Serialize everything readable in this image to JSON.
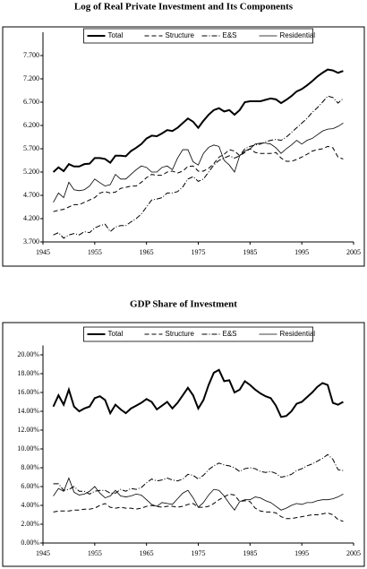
{
  "chart_data": [
    {
      "type": "line",
      "title": "Log of Real Private Investment and Its Components",
      "x": [
        1947,
        1948,
        1949,
        1950,
        1951,
        1952,
        1953,
        1954,
        1955,
        1956,
        1957,
        1958,
        1959,
        1960,
        1961,
        1962,
        1963,
        1964,
        1965,
        1966,
        1967,
        1968,
        1969,
        1970,
        1971,
        1972,
        1973,
        1974,
        1975,
        1976,
        1977,
        1978,
        1979,
        1980,
        1981,
        1982,
        1983,
        1984,
        1985,
        1986,
        1987,
        1988,
        1989,
        1990,
        1991,
        1992,
        1993,
        1994,
        1995,
        1996,
        1997,
        1998,
        1999,
        2000,
        2001,
        2002,
        2003
      ],
      "xlim": [
        1945,
        2005
      ],
      "xticks": [
        1945,
        1955,
        1965,
        1975,
        1985,
        1995,
        2005
      ],
      "ylim": [
        3.7,
        8.2
      ],
      "yticks": [
        {
          "value": 3.7,
          "label": "3.700"
        },
        {
          "value": 4.2,
          "label": "4.200"
        },
        {
          "value": 4.7,
          "label": "4.700"
        },
        {
          "value": 5.2,
          "label": "5.200"
        },
        {
          "value": 5.7,
          "label": "5.700"
        },
        {
          "value": 6.2,
          "label": "6.200"
        },
        {
          "value": 6.7,
          "label": "6.700"
        },
        {
          "value": 7.2,
          "label": "7.200"
        },
        {
          "value": 7.7,
          "label": "7.700"
        }
      ],
      "legend": "top",
      "series": [
        {
          "name": "Total",
          "color": "#000000",
          "style": "bold",
          "values": [
            5.2,
            5.3,
            5.22,
            5.37,
            5.32,
            5.32,
            5.37,
            5.38,
            5.5,
            5.5,
            5.48,
            5.4,
            5.55,
            5.55,
            5.54,
            5.65,
            5.72,
            5.8,
            5.92,
            5.98,
            5.97,
            6.03,
            6.1,
            6.08,
            6.15,
            6.25,
            6.35,
            6.28,
            6.15,
            6.3,
            6.43,
            6.53,
            6.57,
            6.5,
            6.53,
            6.43,
            6.53,
            6.7,
            6.72,
            6.72,
            6.72,
            6.75,
            6.78,
            6.76,
            6.68,
            6.75,
            6.83,
            6.93,
            6.98,
            7.06,
            7.15,
            7.25,
            7.33,
            7.4,
            7.38,
            7.33,
            7.37
          ]
        },
        {
          "name": "Structure",
          "color": "#000000",
          "style": "dashed",
          "values": [
            4.35,
            4.38,
            4.4,
            4.45,
            4.5,
            4.5,
            4.55,
            4.6,
            4.65,
            4.75,
            4.78,
            4.75,
            4.77,
            4.85,
            4.87,
            4.9,
            4.9,
            4.98,
            5.08,
            5.15,
            5.13,
            5.13,
            5.2,
            5.22,
            5.18,
            5.22,
            5.32,
            5.33,
            5.22,
            5.22,
            5.28,
            5.38,
            5.52,
            5.58,
            5.68,
            5.65,
            5.55,
            5.62,
            5.7,
            5.62,
            5.6,
            5.6,
            5.6,
            5.62,
            5.5,
            5.43,
            5.43,
            5.47,
            5.52,
            5.58,
            5.65,
            5.68,
            5.7,
            5.75,
            5.72,
            5.52,
            5.48
          ]
        },
        {
          "name": "E&S",
          "color": "#000000",
          "style": "dashdot",
          "values": [
            3.85,
            3.9,
            3.78,
            3.85,
            3.88,
            3.85,
            3.92,
            3.9,
            4.0,
            4.05,
            4.08,
            3.92,
            4.02,
            4.05,
            4.05,
            4.13,
            4.2,
            4.3,
            4.45,
            4.6,
            4.62,
            4.65,
            4.75,
            4.75,
            4.78,
            4.88,
            5.05,
            5.1,
            5.0,
            5.05,
            5.2,
            5.35,
            5.45,
            5.5,
            5.55,
            5.5,
            5.55,
            5.7,
            5.75,
            5.78,
            5.8,
            5.85,
            5.88,
            5.9,
            5.88,
            5.95,
            6.05,
            6.15,
            6.25,
            6.35,
            6.48,
            6.58,
            6.7,
            6.83,
            6.8,
            6.68,
            6.78
          ]
        },
        {
          "name": "Residential",
          "color": "#000000",
          "style": "solid",
          "values": [
            4.55,
            4.75,
            4.65,
            4.98,
            4.82,
            4.8,
            4.82,
            4.9,
            5.05,
            4.97,
            4.9,
            4.93,
            5.15,
            5.05,
            5.05,
            5.15,
            5.25,
            5.33,
            5.3,
            5.2,
            5.2,
            5.3,
            5.33,
            5.25,
            5.5,
            5.68,
            5.68,
            5.42,
            5.35,
            5.6,
            5.73,
            5.78,
            5.75,
            5.45,
            5.35,
            5.2,
            5.55,
            5.65,
            5.7,
            5.8,
            5.82,
            5.82,
            5.8,
            5.72,
            5.6,
            5.7,
            5.78,
            5.88,
            5.8,
            5.88,
            5.92,
            6.0,
            6.08,
            6.12,
            6.13,
            6.18,
            6.25
          ]
        }
      ]
    },
    {
      "type": "line",
      "title": "GDP Share of Investment",
      "x": [
        1947,
        1948,
        1949,
        1950,
        1951,
        1952,
        1953,
        1954,
        1955,
        1956,
        1957,
        1958,
        1959,
        1960,
        1961,
        1962,
        1963,
        1964,
        1965,
        1966,
        1967,
        1968,
        1969,
        1970,
        1971,
        1972,
        1973,
        1974,
        1975,
        1976,
        1977,
        1978,
        1979,
        1980,
        1981,
        1982,
        1983,
        1984,
        1985,
        1986,
        1987,
        1988,
        1989,
        1990,
        1991,
        1992,
        1993,
        1994,
        1995,
        1996,
        1997,
        1998,
        1999,
        2000,
        2001,
        2002,
        2003
      ],
      "xlim": [
        1945,
        2005
      ],
      "xticks": [
        1945,
        1955,
        1965,
        1975,
        1985,
        1995,
        2005
      ],
      "ylim": [
        0,
        21
      ],
      "yticks": [
        {
          "value": 0,
          "label": "0.00%"
        },
        {
          "value": 2,
          "label": "2.00%"
        },
        {
          "value": 4,
          "label": "4.00%"
        },
        {
          "value": 6,
          "label": "6.00%"
        },
        {
          "value": 8,
          "label": "8.00%"
        },
        {
          "value": 10,
          "label": "10.00%"
        },
        {
          "value": 12,
          "label": "12.00%"
        },
        {
          "value": 14,
          "label": "14.00%"
        },
        {
          "value": 16,
          "label": "16.00%"
        },
        {
          "value": 18,
          "label": "18.00%"
        },
        {
          "value": 20,
          "label": "20.00%"
        }
      ],
      "legend": "top",
      "series": [
        {
          "name": "Total",
          "color": "#000000",
          "style": "bold",
          "values": [
            14.5,
            15.7,
            14.7,
            16.3,
            14.5,
            14.0,
            14.3,
            14.5,
            15.4,
            15.6,
            15.2,
            13.8,
            14.7,
            14.2,
            13.8,
            14.3,
            14.6,
            14.9,
            15.3,
            15.0,
            14.2,
            14.6,
            15.0,
            14.3,
            14.9,
            15.7,
            16.5,
            15.7,
            14.3,
            15.2,
            16.8,
            18.1,
            18.4,
            17.2,
            17.3,
            16.0,
            16.3,
            17.2,
            16.8,
            16.3,
            15.9,
            15.6,
            15.4,
            14.6,
            13.4,
            13.5,
            14.0,
            14.8,
            15.0,
            15.5,
            16.0,
            16.6,
            17.0,
            16.8,
            14.9,
            14.7,
            15.0
          ]
        },
        {
          "name": "Structure",
          "color": "#000000",
          "style": "dashed",
          "values": [
            3.3,
            3.4,
            3.4,
            3.4,
            3.5,
            3.5,
            3.6,
            3.6,
            3.7,
            4.0,
            4.2,
            3.8,
            3.7,
            3.8,
            3.7,
            3.7,
            3.6,
            3.7,
            3.9,
            4.0,
            3.9,
            3.8,
            3.9,
            3.9,
            3.8,
            3.9,
            4.1,
            4.2,
            3.8,
            3.8,
            3.9,
            4.2,
            4.6,
            4.9,
            5.2,
            5.1,
            4.4,
            4.5,
            4.4,
            3.7,
            3.4,
            3.3,
            3.3,
            3.2,
            2.8,
            2.6,
            2.6,
            2.7,
            2.8,
            2.9,
            3.0,
            3.0,
            3.1,
            3.2,
            3.0,
            2.5,
            2.3
          ]
        },
        {
          "name": "E&S",
          "color": "#000000",
          "style": "dashdot",
          "values": [
            6.3,
            6.3,
            5.6,
            5.7,
            6.0,
            5.5,
            5.5,
            5.2,
            5.5,
            5.6,
            5.6,
            5.3,
            5.3,
            5.7,
            5.5,
            5.8,
            5.7,
            5.9,
            6.4,
            6.8,
            6.6,
            6.7,
            6.9,
            6.7,
            6.6,
            6.8,
            7.3,
            7.2,
            6.8,
            7.2,
            7.8,
            8.2,
            8.5,
            8.3,
            8.2,
            8.0,
            7.6,
            7.9,
            8.0,
            7.9,
            7.6,
            7.5,
            7.6,
            7.4,
            7.0,
            7.1,
            7.3,
            7.7,
            7.9,
            8.2,
            8.4,
            8.7,
            9.0,
            9.4,
            8.9,
            7.8,
            7.7
          ]
        },
        {
          "name": "Residential",
          "color": "#000000",
          "style": "solid",
          "values": [
            5.0,
            5.8,
            5.5,
            6.9,
            5.4,
            5.1,
            5.2,
            5.5,
            6.0,
            5.3,
            4.8,
            5.0,
            5.6,
            5.0,
            4.9,
            5.0,
            5.2,
            5.1,
            4.6,
            4.1,
            3.9,
            4.3,
            4.2,
            4.1,
            4.7,
            5.3,
            5.6,
            4.8,
            3.8,
            4.3,
            5.1,
            5.7,
            5.6,
            5.0,
            4.2,
            3.5,
            4.4,
            4.6,
            4.6,
            4.9,
            4.8,
            4.5,
            4.3,
            3.9,
            3.5,
            3.7,
            4.0,
            4.2,
            4.1,
            4.3,
            4.3,
            4.5,
            4.6,
            4.6,
            4.7,
            4.9,
            5.2
          ]
        }
      ]
    }
  ]
}
